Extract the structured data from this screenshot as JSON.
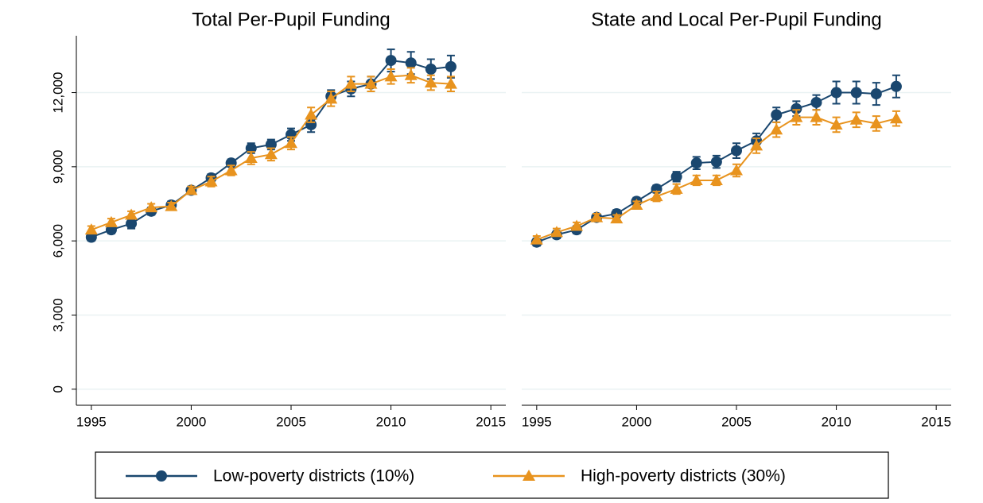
{
  "chart_data": [
    {
      "type": "line",
      "title": "Total Per-Pupil Funding",
      "x": [
        1995,
        1996,
        1997,
        1998,
        1999,
        2000,
        2001,
        2002,
        2003,
        2004,
        2005,
        2006,
        2007,
        2008,
        2009,
        2010,
        2011,
        2012,
        2013
      ],
      "xlim": [
        1994.25,
        2015.75
      ],
      "xticks": [
        1995,
        2000,
        2005,
        2010,
        2015
      ],
      "ylim": [
        -650,
        14300
      ],
      "yticks": [
        0,
        {
          "value": 3000,
          "label": "3,000"
        },
        {
          "value": 6000,
          "label": "6,000"
        },
        {
          "value": 9000,
          "label": "9,000"
        },
        {
          "value": 12000,
          "label": "12,000"
        }
      ],
      "grid": true,
      "series": [
        {
          "name": "Low-poverty districts (10%)",
          "color": "#1a476f",
          "marker": "circle",
          "values": [
            6150,
            6450,
            6700,
            7200,
            7450,
            8050,
            8550,
            9150,
            9750,
            9900,
            10300,
            10700,
            11850,
            12150,
            12350,
            13300,
            13200,
            12950,
            13050
          ],
          "errors": [
            150,
            150,
            200,
            150,
            150,
            150,
            150,
            150,
            200,
            200,
            250,
            300,
            250,
            300,
            300,
            450,
            450,
            400,
            450
          ]
        },
        {
          "name": "High-poverty districts (30%)",
          "color": "#e8931e",
          "marker": "triangle",
          "values": [
            6450,
            6750,
            7050,
            7350,
            7400,
            8050,
            8400,
            8850,
            9350,
            9500,
            9950,
            11100,
            11750,
            12350,
            12350,
            12650,
            12700,
            12400,
            12350
          ],
          "errors": [
            150,
            150,
            150,
            150,
            150,
            150,
            200,
            200,
            250,
            250,
            250,
            300,
            300,
            300,
            300,
            300,
            300,
            300,
            300
          ]
        }
      ]
    },
    {
      "type": "line",
      "title": "State and Local Per-Pupil Funding",
      "x": [
        1995,
        1996,
        1997,
        1998,
        1999,
        2000,
        2001,
        2002,
        2003,
        2004,
        2005,
        2006,
        2007,
        2008,
        2009,
        2010,
        2011,
        2012,
        2013
      ],
      "xlim": [
        1994.25,
        2015.75
      ],
      "xticks": [
        1995,
        2000,
        2005,
        2010,
        2015
      ],
      "ylim": [
        -650,
        14300
      ],
      "grid": true,
      "series": [
        {
          "name": "Low-poverty districts (10%)",
          "color": "#1a476f",
          "marker": "circle",
          "values": [
            5950,
            6250,
            6450,
            6950,
            7100,
            7600,
            8100,
            8600,
            9150,
            9200,
            9650,
            10050,
            11100,
            11350,
            11600,
            12000,
            12000,
            11950,
            12250
          ],
          "errors": [
            150,
            150,
            150,
            150,
            150,
            150,
            150,
            200,
            250,
            250,
            300,
            300,
            300,
            300,
            300,
            450,
            450,
            450,
            450
          ]
        },
        {
          "name": "High-poverty districts (30%)",
          "color": "#e8931e",
          "marker": "triangle",
          "values": [
            6050,
            6350,
            6600,
            6950,
            6900,
            7450,
            7800,
            8100,
            8450,
            8450,
            8850,
            9850,
            10500,
            11000,
            11000,
            10700,
            10900,
            10750,
            10950
          ],
          "errors": [
            150,
            150,
            150,
            150,
            150,
            150,
            200,
            200,
            200,
            200,
            250,
            300,
            300,
            300,
            300,
            300,
            300,
            300,
            300
          ]
        }
      ]
    }
  ]
}
